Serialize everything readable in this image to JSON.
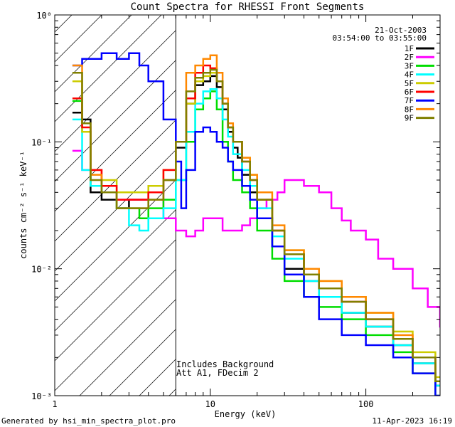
{
  "chart_data": {
    "type": "line",
    "title": "Count Spectra for RHESSI Front Segments",
    "xlabel": "Energy (keV)",
    "ylabel": "counts cm⁻² s⁻¹ keV⁻¹",
    "x_scale": "log",
    "y_scale": "log",
    "xlim": [
      1,
      300
    ],
    "ylim": [
      0.001,
      1
    ],
    "x_ticks": [
      {
        "value": 1,
        "label": "1"
      },
      {
        "value": 10,
        "label": "10"
      },
      {
        "value": 100,
        "label": "100"
      }
    ],
    "y_ticks": [
      {
        "value": 1,
        "label": "10⁰"
      },
      {
        "value": 0.1,
        "label": "10⁻¹"
      },
      {
        "value": 0.01,
        "label": "10⁻²"
      },
      {
        "value": 0.001,
        "label": "10⁻³"
      }
    ],
    "date": "21-Oct-2003",
    "time_range": "03:54:00 to 03:55:00",
    "annotations": [
      "Includes Background",
      "Att A1, FDecim 2"
    ],
    "shaded_region_upper_energy": 6,
    "footer_left": "Generated by hsi_min_spectra_plot.pro",
    "footer_right": "11-Apr-2023 16:19",
    "legend_position": "top-right",
    "series": [
      {
        "name": "1F",
        "color": "#000000",
        "points": [
          [
            1.3,
            0.17
          ],
          [
            1.5,
            0.15
          ],
          [
            1.7,
            0.04
          ],
          [
            2,
            0.035
          ],
          [
            2.5,
            0.03
          ],
          [
            3,
            0.035
          ],
          [
            4,
            0.04
          ],
          [
            5,
            0.05
          ],
          [
            6,
            0.09
          ],
          [
            7,
            0.2
          ],
          [
            8,
            0.28
          ],
          [
            9,
            0.3
          ],
          [
            10,
            0.33
          ],
          [
            11,
            0.27
          ],
          [
            12,
            0.18
          ],
          [
            13,
            0.12
          ],
          [
            14,
            0.09
          ],
          [
            15,
            0.075
          ],
          [
            16,
            0.055
          ],
          [
            18,
            0.04
          ],
          [
            20,
            0.025
          ],
          [
            25,
            0.015
          ],
          [
            30,
            0.01
          ],
          [
            40,
            0.008
          ],
          [
            50,
            0.006
          ],
          [
            70,
            0.0045
          ],
          [
            100,
            0.0035
          ],
          [
            150,
            0.0025
          ],
          [
            200,
            0.0018
          ],
          [
            280,
            0.0012
          ]
        ]
      },
      {
        "name": "2F",
        "color": "#ff00ff",
        "points": [
          [
            1.3,
            0.085
          ],
          [
            1.5,
            0.06
          ],
          [
            2,
            0.04
          ],
          [
            2.5,
            0.035
          ],
          [
            3,
            0.035
          ],
          [
            4,
            0.04
          ],
          [
            5,
            0.025
          ],
          [
            6,
            0.02
          ],
          [
            7,
            0.018
          ],
          [
            8,
            0.02
          ],
          [
            9,
            0.025
          ],
          [
            10,
            0.025
          ],
          [
            12,
            0.02
          ],
          [
            14,
            0.02
          ],
          [
            16,
            0.022
          ],
          [
            18,
            0.025
          ],
          [
            20,
            0.03
          ],
          [
            23,
            0.035
          ],
          [
            27,
            0.04
          ],
          [
            30,
            0.05
          ],
          [
            35,
            0.05
          ],
          [
            40,
            0.045
          ],
          [
            50,
            0.04
          ],
          [
            60,
            0.03
          ],
          [
            70,
            0.024
          ],
          [
            80,
            0.02
          ],
          [
            100,
            0.017
          ],
          [
            120,
            0.012
          ],
          [
            150,
            0.01
          ],
          [
            200,
            0.007
          ],
          [
            250,
            0.005
          ],
          [
            300,
            0.0035
          ]
        ]
      },
      {
        "name": "3F",
        "color": "#00dd00",
        "points": [
          [
            1.3,
            0.21
          ],
          [
            1.5,
            0.12
          ],
          [
            1.7,
            0.045
          ],
          [
            2,
            0.04
          ],
          [
            2.5,
            0.03
          ],
          [
            3,
            0.03
          ],
          [
            3.5,
            0.025
          ],
          [
            4,
            0.03
          ],
          [
            5,
            0.035
          ],
          [
            6,
            0.05
          ],
          [
            7,
            0.1
          ],
          [
            8,
            0.18
          ],
          [
            9,
            0.22
          ],
          [
            10,
            0.25
          ],
          [
            11,
            0.18
          ],
          [
            12,
            0.1
          ],
          [
            13,
            0.07
          ],
          [
            14,
            0.05
          ],
          [
            16,
            0.04
          ],
          [
            18,
            0.03
          ],
          [
            20,
            0.02
          ],
          [
            25,
            0.012
          ],
          [
            30,
            0.008
          ],
          [
            40,
            0.006
          ],
          [
            50,
            0.005
          ],
          [
            70,
            0.004
          ],
          [
            100,
            0.003
          ],
          [
            150,
            0.0022
          ],
          [
            200,
            0.0015
          ],
          [
            280,
            0.001
          ]
        ]
      },
      {
        "name": "4F",
        "color": "#00ffff",
        "points": [
          [
            1.3,
            0.15
          ],
          [
            1.5,
            0.06
          ],
          [
            1.7,
            0.045
          ],
          [
            2,
            0.04
          ],
          [
            2.5,
            0.03
          ],
          [
            3,
            0.022
          ],
          [
            3.5,
            0.02
          ],
          [
            4,
            0.025
          ],
          [
            5,
            0.03
          ],
          [
            6,
            0.05
          ],
          [
            7,
            0.12
          ],
          [
            8,
            0.2
          ],
          [
            9,
            0.25
          ],
          [
            10,
            0.26
          ],
          [
            11,
            0.22
          ],
          [
            12,
            0.15
          ],
          [
            13,
            0.11
          ],
          [
            14,
            0.08
          ],
          [
            16,
            0.06
          ],
          [
            18,
            0.045
          ],
          [
            20,
            0.03
          ],
          [
            25,
            0.018
          ],
          [
            30,
            0.012
          ],
          [
            40,
            0.008
          ],
          [
            50,
            0.006
          ],
          [
            70,
            0.0045
          ],
          [
            100,
            0.0035
          ],
          [
            150,
            0.0025
          ],
          [
            200,
            0.0018
          ],
          [
            280,
            0.0012
          ]
        ]
      },
      {
        "name": "5F",
        "color": "#cccc00",
        "points": [
          [
            1.3,
            0.3
          ],
          [
            1.5,
            0.12
          ],
          [
            1.7,
            0.06
          ],
          [
            2,
            0.05
          ],
          [
            2.5,
            0.04
          ],
          [
            3,
            0.04
          ],
          [
            4,
            0.045
          ],
          [
            5,
            0.06
          ],
          [
            6,
            0.1
          ],
          [
            7,
            0.2
          ],
          [
            8,
            0.3
          ],
          [
            9,
            0.33
          ],
          [
            10,
            0.35
          ],
          [
            11,
            0.3
          ],
          [
            12,
            0.2
          ],
          [
            13,
            0.13
          ],
          [
            14,
            0.1
          ],
          [
            16,
            0.075
          ],
          [
            18,
            0.055
          ],
          [
            20,
            0.035
          ],
          [
            25,
            0.02
          ],
          [
            30,
            0.014
          ],
          [
            40,
            0.01
          ],
          [
            50,
            0.008
          ],
          [
            70,
            0.006
          ],
          [
            100,
            0.0045
          ],
          [
            150,
            0.0032
          ],
          [
            200,
            0.0022
          ],
          [
            280,
            0.0014
          ]
        ]
      },
      {
        "name": "6F",
        "color": "#ff0000",
        "points": [
          [
            1.3,
            0.22
          ],
          [
            1.5,
            0.13
          ],
          [
            1.7,
            0.06
          ],
          [
            2,
            0.045
          ],
          [
            2.5,
            0.035
          ],
          [
            3,
            0.035
          ],
          [
            4,
            0.04
          ],
          [
            5,
            0.06
          ],
          [
            6,
            0.1
          ],
          [
            7,
            0.22
          ],
          [
            8,
            0.35
          ],
          [
            9,
            0.4
          ],
          [
            10,
            0.38
          ],
          [
            11,
            0.3
          ],
          [
            12,
            0.2
          ],
          [
            13,
            0.13
          ],
          [
            14,
            0.1
          ],
          [
            16,
            0.07
          ],
          [
            18,
            0.05
          ],
          [
            20,
            0.035
          ],
          [
            25,
            0.02
          ],
          [
            30,
            0.013
          ],
          [
            40,
            0.009
          ],
          [
            50,
            0.007
          ],
          [
            70,
            0.0055
          ],
          [
            100,
            0.004
          ],
          [
            150,
            0.0028
          ],
          [
            200,
            0.002
          ],
          [
            280,
            0.0013
          ]
        ]
      },
      {
        "name": "7F",
        "color": "#0000ff",
        "points": [
          [
            1.3,
            0.4
          ],
          [
            1.5,
            0.45
          ],
          [
            1.7,
            0.45
          ],
          [
            2,
            0.5
          ],
          [
            2.5,
            0.45
          ],
          [
            3,
            0.5
          ],
          [
            3.5,
            0.4
          ],
          [
            4,
            0.3
          ],
          [
            5,
            0.15
          ],
          [
            6,
            0.07
          ],
          [
            6.5,
            0.03
          ],
          [
            7,
            0.06
          ],
          [
            8,
            0.12
          ],
          [
            9,
            0.13
          ],
          [
            10,
            0.12
          ],
          [
            11,
            0.1
          ],
          [
            12,
            0.09
          ],
          [
            13,
            0.07
          ],
          [
            14,
            0.06
          ],
          [
            16,
            0.045
          ],
          [
            18,
            0.035
          ],
          [
            20,
            0.025
          ],
          [
            25,
            0.015
          ],
          [
            30,
            0.009
          ],
          [
            40,
            0.006
          ],
          [
            50,
            0.004
          ],
          [
            70,
            0.003
          ],
          [
            100,
            0.0025
          ],
          [
            150,
            0.002
          ],
          [
            200,
            0.0015
          ],
          [
            280,
            0.001
          ]
        ]
      },
      {
        "name": "8F",
        "color": "#ff8800",
        "points": [
          [
            1.3,
            0.4
          ],
          [
            1.5,
            0.14
          ],
          [
            1.7,
            0.055
          ],
          [
            2,
            0.04
          ],
          [
            2.5,
            0.03
          ],
          [
            3,
            0.03
          ],
          [
            4,
            0.035
          ],
          [
            5,
            0.05
          ],
          [
            6,
            0.1
          ],
          [
            7,
            0.35
          ],
          [
            8,
            0.4
          ],
          [
            9,
            0.45
          ],
          [
            10,
            0.48
          ],
          [
            11,
            0.35
          ],
          [
            12,
            0.22
          ],
          [
            13,
            0.14
          ],
          [
            14,
            0.1
          ],
          [
            16,
            0.075
          ],
          [
            18,
            0.055
          ],
          [
            20,
            0.04
          ],
          [
            25,
            0.022
          ],
          [
            30,
            0.014
          ],
          [
            40,
            0.01
          ],
          [
            50,
            0.008
          ],
          [
            70,
            0.006
          ],
          [
            100,
            0.0045
          ],
          [
            150,
            0.003
          ],
          [
            200,
            0.002
          ],
          [
            280,
            0.0013
          ]
        ]
      },
      {
        "name": "9F",
        "color": "#808000",
        "points": [
          [
            1.3,
            0.35
          ],
          [
            1.5,
            0.14
          ],
          [
            1.7,
            0.05
          ],
          [
            2,
            0.04
          ],
          [
            2.5,
            0.03
          ],
          [
            3,
            0.03
          ],
          [
            4,
            0.035
          ],
          [
            5,
            0.05
          ],
          [
            6,
            0.1
          ],
          [
            7,
            0.25
          ],
          [
            8,
            0.32
          ],
          [
            9,
            0.35
          ],
          [
            10,
            0.37
          ],
          [
            11,
            0.3
          ],
          [
            12,
            0.2
          ],
          [
            13,
            0.13
          ],
          [
            14,
            0.1
          ],
          [
            16,
            0.07
          ],
          [
            18,
            0.05
          ],
          [
            20,
            0.035
          ],
          [
            25,
            0.02
          ],
          [
            30,
            0.013
          ],
          [
            40,
            0.009
          ],
          [
            50,
            0.007
          ],
          [
            70,
            0.0055
          ],
          [
            100,
            0.004
          ],
          [
            150,
            0.0028
          ],
          [
            200,
            0.002
          ],
          [
            280,
            0.0013
          ]
        ]
      }
    ]
  }
}
